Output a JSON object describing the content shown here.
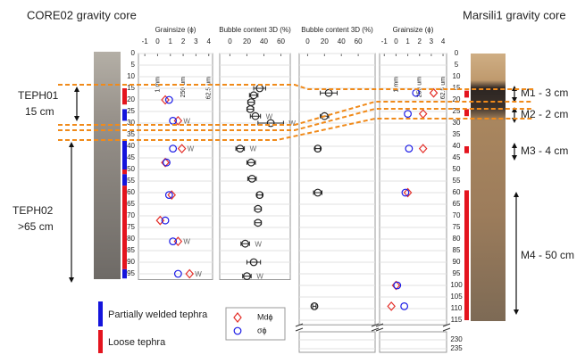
{
  "core_titles": {
    "left": "CORE02 gravity core",
    "right": "Marsili1 gravity core"
  },
  "core02_units": [
    {
      "name": "TEPH01",
      "thickness": "15 cm"
    },
    {
      "name": "TEPH02",
      "thickness": ">65 cm"
    }
  ],
  "marsili_units": [
    "M1 - 3 cm",
    "M2 - 2 cm",
    "M3 - 4 cm",
    "M4 - 50 cm"
  ],
  "legend": {
    "welded": "Partially welded tephra",
    "loose": "Loose tephra"
  },
  "tephra_strips": {
    "welded_color": "#1414dc",
    "loose_color": "#e4141e",
    "core02": {
      "welded": [
        [
          24,
          29
        ],
        [
          37,
          50
        ],
        [
          52,
          57
        ],
        [
          93,
          97
        ]
      ],
      "loose": [
        [
          15,
          22
        ],
        [
          50,
          52
        ],
        [
          57,
          93
        ]
      ]
    },
    "marsili": {
      "welded": [],
      "loose": [
        [
          16,
          19
        ],
        [
          24,
          27
        ],
        [
          40,
          43
        ],
        [
          59,
          115
        ]
      ]
    }
  },
  "chart_data": [
    {
      "type": "scatter",
      "xlabel": "Grainsize (ϕ)",
      "xlim": [
        -1.5,
        4.3
      ],
      "xticks": [
        -1,
        0,
        1,
        2,
        3,
        4
      ],
      "size_ticks": [
        {
          "value": 0,
          "label": "1 mm"
        },
        {
          "value": 2,
          "label": "250 um"
        },
        {
          "value": 4,
          "label": "62.5 um"
        }
      ],
      "ylim": [
        0,
        97.5
      ],
      "yticks": [
        0,
        5,
        10,
        15,
        20,
        25,
        30,
        35,
        40,
        45,
        50,
        55,
        60,
        65,
        70,
        75,
        80,
        85,
        90,
        95
      ],
      "grid": true,
      "series": [
        {
          "name": "Mdϕ",
          "color": "#e4302a",
          "marker": "diamond",
          "depth": [
            20,
            29,
            41,
            47,
            61,
            72,
            81,
            95
          ],
          "values": [
            0.6,
            1.6,
            1.9,
            0.6,
            1.1,
            0.2,
            1.6,
            2.5
          ],
          "notes": [
            null,
            "W",
            "W",
            null,
            null,
            null,
            "W",
            "W"
          ]
        },
        {
          "name": "σϕ",
          "color": "#1a1ae6",
          "marker": "circle",
          "depth": [
            20,
            29,
            41,
            47,
            61,
            72,
            81,
            95
          ],
          "values": [
            0.9,
            1.2,
            1.2,
            0.7,
            0.9,
            0.6,
            1.2,
            1.6
          ]
        }
      ]
    },
    {
      "type": "scatter",
      "xlabel": "Bubble content 3D (%)",
      "xlim": [
        -12,
        71
      ],
      "xticks": [
        0,
        20,
        40,
        60
      ],
      "ylim": [
        0,
        97.5
      ],
      "yticks": [
        0,
        5,
        10,
        15,
        20,
        25,
        30,
        35,
        40,
        45,
        50,
        55,
        60,
        65,
        70,
        75,
        80,
        85,
        90,
        95
      ],
      "grid": true,
      "series": [
        {
          "color": "#222222",
          "marker": "circle",
          "depth": [
            15,
            18,
            21,
            24,
            27,
            30,
            41,
            47,
            54,
            61,
            67,
            73,
            82,
            90,
            96
          ],
          "values": [
            35,
            28,
            25,
            24,
            30,
            48,
            12,
            25,
            26,
            35,
            33,
            33,
            18,
            28,
            20
          ],
          "errors": [
            7,
            5,
            4,
            4,
            6,
            15,
            5,
            5,
            5,
            3,
            4,
            4,
            5,
            8,
            5
          ],
          "notes": [
            null,
            null,
            null,
            null,
            "W",
            "W",
            "W",
            null,
            null,
            null,
            null,
            null,
            "W",
            null,
            "W"
          ]
        }
      ]
    },
    {
      "type": "scatter",
      "xlabel": "Bubble content 3D (%)",
      "xlim": [
        -10,
        80
      ],
      "xticks": [
        0,
        20,
        40,
        60
      ],
      "ylim": [
        0,
        117
      ],
      "yticks": [
        0,
        5,
        10,
        15,
        20,
        25,
        30,
        35,
        40,
        45,
        50,
        55,
        60,
        65,
        70,
        75,
        80,
        85,
        90,
        95,
        100,
        105,
        110,
        115
      ],
      "grid": true,
      "break_ylim": [
        228,
        237
      ],
      "break_yticks": [
        230,
        235
      ],
      "series": [
        {
          "color": "#222222",
          "marker": "circle",
          "depth": [
            17,
            27,
            41,
            60,
            109
          ],
          "values": [
            25,
            20,
            12,
            12,
            8
          ],
          "errors": [
            10,
            5,
            3,
            5,
            2
          ]
        }
      ]
    },
    {
      "type": "scatter",
      "xlabel": "Grainsize (ϕ)",
      "xlim": [
        -1.4,
        4.3
      ],
      "xticks": [
        -1,
        0,
        1,
        2,
        3,
        4
      ],
      "size_ticks": [
        {
          "value": 0,
          "label": "1 mm"
        },
        {
          "value": 2,
          "label": "250 um"
        },
        {
          "value": 4,
          "label": "62.5 um"
        }
      ],
      "ylim": [
        0,
        117
      ],
      "yticks": [
        0,
        5,
        10,
        15,
        20,
        25,
        30,
        35,
        40,
        45,
        50,
        55,
        60,
        65,
        70,
        75,
        80,
        85,
        90,
        95,
        100,
        105,
        110,
        115
      ],
      "grid": true,
      "break_ylim": [
        228,
        237
      ],
      "break_yticks": [
        230,
        235
      ],
      "series": [
        {
          "name": "Mdϕ",
          "color": "#e4302a",
          "marker": "diamond",
          "depth": [
            17,
            26,
            41,
            60,
            100,
            109
          ],
          "values": [
            3.2,
            2.3,
            2.3,
            1.0,
            0.0,
            -0.4
          ]
        },
        {
          "name": "σϕ",
          "color": "#1a1ae6",
          "marker": "circle",
          "depth": [
            17,
            26,
            41,
            60,
            100,
            109
          ],
          "values": [
            1.7,
            1.0,
            1.1,
            0.8,
            0.1,
            0.7
          ]
        }
      ]
    }
  ]
}
